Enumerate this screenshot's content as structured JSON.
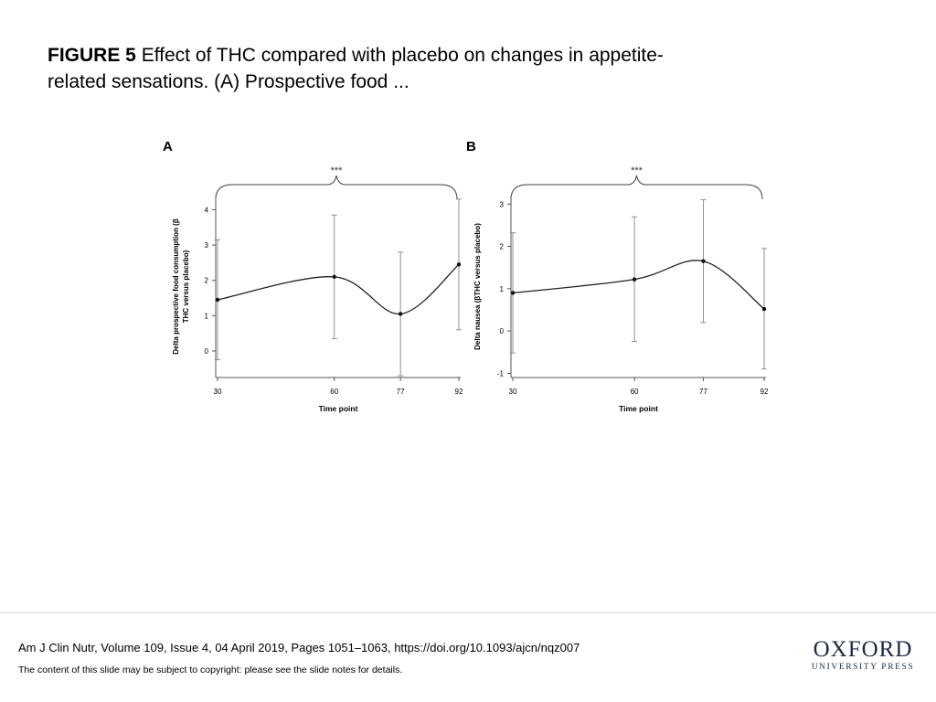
{
  "slide": {
    "title_bold": "FIGURE 5",
    "title_rest": " Effect of THC compared with placebo on changes in appetite-related sensations. (A) Prospective food ..."
  },
  "chart_data": [
    {
      "panel": "A",
      "type": "line",
      "significance": "***",
      "xlabel": "Time point",
      "ylabel": "Delta prospective food consumption (β THC versus placebo)",
      "x": [
        30,
        60,
        77,
        92
      ],
      "y": [
        1.45,
        2.1,
        1.05,
        2.45
      ],
      "error_lower": [
        -0.25,
        0.35,
        -0.7,
        0.6
      ],
      "error_upper": [
        3.15,
        3.85,
        2.8,
        4.3
      ],
      "xticks": [
        "30",
        "60",
        "77",
        "92"
      ],
      "yticks": [
        0,
        1,
        2,
        3,
        4
      ],
      "ylim": [
        -0.75,
        4.4
      ],
      "xlim": [
        30,
        92
      ],
      "grid": false
    },
    {
      "panel": "B",
      "type": "line",
      "significance": "***",
      "xlabel": "Time point",
      "ylabel": "Delta nausea (βTHC versus placebo)",
      "x": [
        30,
        60,
        77,
        92
      ],
      "y": [
        0.9,
        1.22,
        1.65,
        0.52
      ],
      "error_lower": [
        -0.52,
        -0.25,
        0.2,
        -0.9
      ],
      "error_upper": [
        2.32,
        2.7,
        3.1,
        1.95
      ],
      "xticks": [
        "30",
        "60",
        "77",
        "92"
      ],
      "yticks": [
        -1,
        0,
        1,
        2,
        3
      ],
      "ylim": [
        -1.1,
        3.2
      ],
      "xlim": [
        30,
        92
      ],
      "grid": false
    }
  ],
  "footer": {
    "citation": "Am J Clin Nutr, Volume 109, Issue 4, 04 April 2019, Pages 1051–1063, https://doi.org/10.1093/ajcn/nqz007",
    "notice": "The content of this slide may be subject to copyright: please see the slide notes for details.",
    "logo_main": "OXFORD",
    "logo_sub": "UNIVERSITY PRESS"
  }
}
